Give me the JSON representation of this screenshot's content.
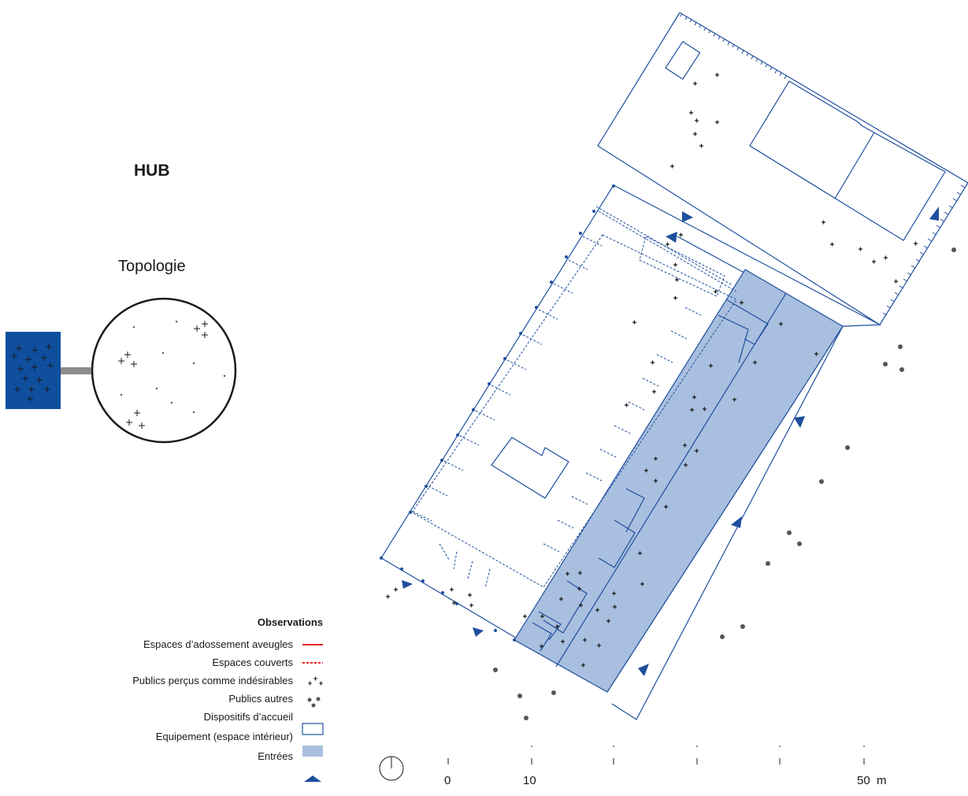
{
  "title": "HUB",
  "topology": {
    "label": "Topologie"
  },
  "legend": {
    "heading": "Observations",
    "items": [
      {
        "label": "Espaces d’adossement aveugles",
        "symbol": "red-solid-line",
        "color": "#e8232a"
      },
      {
        "label": "Espaces couverts",
        "symbol": "red-dashed-line",
        "color": "#e8232a"
      },
      {
        "label": "Publics perçus comme  indésirables",
        "symbol": "plus-markers-icon",
        "color": "#1a1a1a"
      },
      {
        "label": "Publics autres",
        "symbol": "grey-dots-icon",
        "color": "#555555"
      },
      {
        "label": "Dispositifs d’accueil",
        "symbol": "outline-rectangle",
        "color": "#1f4f9e"
      },
      {
        "label": "Equipement (espace intérieur)",
        "symbol": "filled-rectangle",
        "color": "#a9bfdf"
      },
      {
        "label": "Entrées",
        "symbol": "triangle-icon",
        "color": "#1f4f9e"
      }
    ]
  },
  "scale": {
    "labels": [
      "0",
      "10",
      "50  m"
    ]
  },
  "colors": {
    "plan_line": "#1f4f9e",
    "equipment_fill": "#a9bfdf",
    "topology_square": "#0f4f9e",
    "other_public_dot": "#555555"
  }
}
